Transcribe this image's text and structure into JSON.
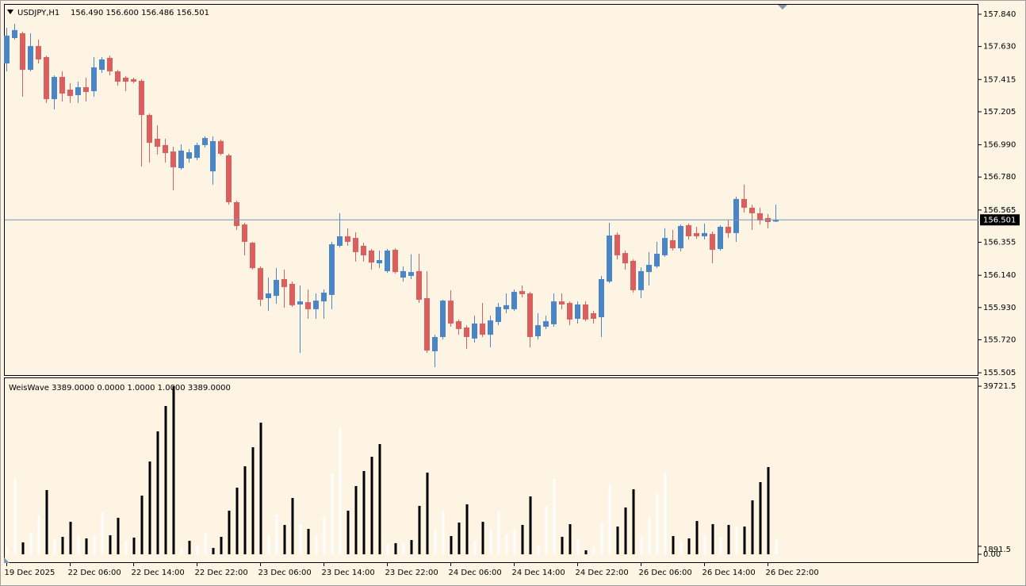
{
  "chart_data": [
    {
      "type": "candlestick",
      "title": "USDJPY,H1",
      "subtitle": "156.490 156.600 156.486 156.501",
      "categories": [
        "19 Dec 2025",
        null,
        null,
        null,
        null,
        null,
        null,
        null,
        "22 Dec 06:00",
        null,
        null,
        null,
        null,
        null,
        null,
        null,
        "22 Dec 14:00",
        null,
        null,
        null,
        null,
        null,
        null,
        null,
        "22 Dec 22:00",
        null,
        null,
        null,
        null,
        null,
        null,
        null,
        "23 Dec 06:00",
        null,
        null,
        null,
        null,
        null,
        null,
        null,
        "23 Dec 14:00",
        null,
        null,
        null,
        null,
        null,
        null,
        null,
        "23 Dec 22:00",
        null,
        null,
        null,
        null,
        null,
        null,
        null,
        "24 Dec 06:00",
        null,
        null,
        null,
        null,
        null,
        null,
        null,
        "24 Dec 14:00",
        null,
        null,
        null,
        null,
        null,
        null,
        null,
        "24 Dec 22:00",
        null,
        null,
        null,
        null,
        null,
        null,
        null,
        "26 Dec 06:00",
        null,
        null,
        null,
        null,
        null,
        null,
        null,
        "26 Dec 14:00",
        null,
        null,
        null,
        null,
        null,
        null,
        null,
        "26 Dec 22:00",
        null
      ],
      "open": [
        157.52,
        157.685,
        157.716,
        157.478,
        157.633,
        157.561,
        157.287,
        157.432,
        157.349,
        157.313,
        157.365,
        157.339,
        157.478,
        157.556,
        157.468,
        157.427,
        157.417,
        157.406,
        157.184,
        157.029,
        156.988,
        156.946,
        156.838,
        156.9,
        156.905,
        156.988,
        156.817,
        157.014,
        156.921,
        156.616,
        156.471,
        156.352,
        156.187,
        155.991,
        156.006,
        156.115,
        156.084,
        155.95,
        155.965,
        155.919,
        155.97,
        156.012,
        156.332,
        156.394,
        156.383,
        156.332,
        156.301,
        156.218,
        156.167,
        156.306,
        156.125,
        156.136,
        156.167,
        155.991,
        155.645,
        155.738,
        155.975,
        155.841,
        155.8,
        155.728,
        155.826,
        155.753,
        155.836,
        155.919,
        155.919,
        156.037,
        156.022,
        155.743,
        155.805,
        155.821,
        155.97,
        155.96,
        155.857,
        155.95,
        155.893,
        155.867,
        156.099,
        156.404,
        156.285,
        156.234,
        156.043,
        156.161,
        156.198,
        156.27,
        156.368,
        156.316,
        156.466,
        156.415,
        156.394,
        156.409,
        156.311,
        156.456,
        156.415,
        156.637,
        156.58,
        156.544,
        156.513,
        156.49
      ],
      "high": [
        157.752,
        157.778,
        157.726,
        157.716,
        157.675,
        157.571,
        157.442,
        157.468,
        157.391,
        157.401,
        157.427,
        157.561,
        157.561,
        157.571,
        157.478,
        157.437,
        157.427,
        157.417,
        157.194,
        157.117,
        157.029,
        156.977,
        156.993,
        156.962,
        157.003,
        157.045,
        157.045,
        157.024,
        156.931,
        156.626,
        156.482,
        156.358,
        156.198,
        156.125,
        156.187,
        156.177,
        156.099,
        156.074,
        156.048,
        156.022,
        156.048,
        156.358,
        156.544,
        156.446,
        156.42,
        156.352,
        156.311,
        156.301,
        156.311,
        156.316,
        156.198,
        156.275,
        156.28,
        156.167,
        155.753,
        155.981,
        156.043,
        155.852,
        155.815,
        155.877,
        155.96,
        155.877,
        155.96,
        156.022,
        156.048,
        156.074,
        156.032,
        155.893,
        155.877,
        156.022,
        156.022,
        155.97,
        155.97,
        155.97,
        155.908,
        156.136,
        156.482,
        156.42,
        156.301,
        156.244,
        156.192,
        156.291,
        156.358,
        156.446,
        156.435,
        156.471,
        156.477,
        156.456,
        156.477,
        156.425,
        156.466,
        156.502,
        156.652,
        156.73,
        156.6,
        156.58,
        156.539,
        156.6
      ],
      "low": [
        157.468,
        157.675,
        157.303,
        157.468,
        157.52,
        157.262,
        157.22,
        157.272,
        157.262,
        157.262,
        157.272,
        157.303,
        157.458,
        157.442,
        157.375,
        157.339,
        157.391,
        156.848,
        156.874,
        156.926,
        156.874,
        156.693,
        156.828,
        156.874,
        156.89,
        156.972,
        156.73,
        156.921,
        156.6,
        156.435,
        156.27,
        156.177,
        155.939,
        155.908,
        155.955,
        155.929,
        155.934,
        155.635,
        155.857,
        155.857,
        155.857,
        155.919,
        156.321,
        156.332,
        156.229,
        156.229,
        156.177,
        156.187,
        156.156,
        156.151,
        156.099,
        156.115,
        155.96,
        155.635,
        155.542,
        155.722,
        155.805,
        155.753,
        155.66,
        155.702,
        155.738,
        155.671,
        155.815,
        155.893,
        155.908,
        155.996,
        155.671,
        155.722,
        155.79,
        155.805,
        155.919,
        155.815,
        155.826,
        155.841,
        155.826,
        155.738,
        156.089,
        156.244,
        156.177,
        156.027,
        155.991,
        156.074,
        156.187,
        156.26,
        156.301,
        156.296,
        156.373,
        156.378,
        156.373,
        156.218,
        156.301,
        156.383,
        156.358,
        156.549,
        156.435,
        156.471,
        156.446,
        156.486
      ],
      "close": [
        157.701,
        157.737,
        157.478,
        157.633,
        157.546,
        157.287,
        157.432,
        157.324,
        157.308,
        157.365,
        157.334,
        157.494,
        157.546,
        157.468,
        157.401,
        157.401,
        157.401,
        157.184,
        157.003,
        156.977,
        156.936,
        156.843,
        156.952,
        156.941,
        156.988,
        157.034,
        157.014,
        156.931,
        156.616,
        156.461,
        156.358,
        156.187,
        155.981,
        156.022,
        156.11,
        156.063,
        155.945,
        155.97,
        155.919,
        155.975,
        156.027,
        156.342,
        156.394,
        156.358,
        156.291,
        156.27,
        156.223,
        156.239,
        156.301,
        156.161,
        156.167,
        156.161,
        155.981,
        155.65,
        155.738,
        155.975,
        155.826,
        155.79,
        155.738,
        155.826,
        155.753,
        155.846,
        155.934,
        155.945,
        156.032,
        156.017,
        155.738,
        155.815,
        155.841,
        155.97,
        155.95,
        155.852,
        155.95,
        155.852,
        155.857,
        156.115,
        156.399,
        156.27,
        156.218,
        156.043,
        156.167,
        156.208,
        156.28,
        156.383,
        156.316,
        156.461,
        156.394,
        156.394,
        156.415,
        156.306,
        156.456,
        156.415,
        156.637,
        156.58,
        156.544,
        156.497,
        156.487,
        156.501
      ],
      "up_color": "#4a86c5",
      "down_color": "#d9605f",
      "last_price": 156.501,
      "last_price_color": "#7594b8",
      "ylim": [
        155.485,
        157.907
      ],
      "yticks": [
        {
          "value": 157.84,
          "label": "157.840"
        },
        {
          "value": 157.63,
          "label": "157.630"
        },
        157.415,
        157.205,
        {
          "value": 156.99,
          "label": "156.990"
        },
        {
          "value": 156.78,
          "label": "156.780"
        },
        156.565,
        156.355,
        {
          "value": 156.14,
          "label": "156.140"
        },
        {
          "value": 155.93,
          "label": "155.930"
        },
        {
          "value": 155.72,
          "label": "155.720"
        },
        155.505
      ]
    },
    {
      "type": "bar",
      "title": "WeisWave 3389.0000 0.0000 1.0000 1.0000 3389.0000",
      "values": [
        1690,
        17990,
        2810,
        5250,
        9180,
        15180,
        3560,
        4120,
        7680,
        4310,
        3750,
        4310,
        9930,
        4500,
        8620,
        3190,
        3940,
        13870,
        21930,
        29050,
        35040,
        39721.5,
        1310,
        3190,
        2060,
        4870,
        1500,
        4120,
        10310,
        15740,
        20800,
        25300,
        31110,
        4310,
        9370,
        6930,
        13310,
        7120,
        6000,
        4310,
        9000,
        19110,
        29800,
        10310,
        16120,
        19680,
        23050,
        26050,
        2440,
        2620,
        2620,
        3370,
        11430,
        19300,
        6000,
        10120,
        4310,
        7500,
        11810,
        3190,
        7680,
        5810,
        10120,
        4690,
        5810,
        6930,
        13680,
        2060,
        11430,
        17800,
        4120,
        7120,
        3560,
        940,
        1690,
        7310,
        16490,
        6560,
        11060,
        15370,
        4120,
        8810,
        14430,
        19110,
        4310,
        3190,
        3750,
        7870,
        4500,
        7120,
        4120,
        6930,
        6560,
        6560,
        12740,
        17050,
        20610,
        3389
      ],
      "colors": [
        "#fff",
        "#fff",
        "#000",
        "#fff",
        "#fff",
        "#000",
        "#fff",
        "#000",
        "#000",
        "#fff",
        "#000",
        "#fff",
        "#fff",
        "#000",
        "#000",
        "#fff",
        "#000",
        "#000",
        "#000",
        "#000",
        "#000",
        "#000",
        "#fff",
        "#000",
        "#fff",
        "#fff",
        "#000",
        "#000",
        "#000",
        "#000",
        "#000",
        "#000",
        "#000",
        "#fff",
        "#fff",
        "#000",
        "#000",
        "#fff",
        "#000",
        "#fff",
        "#fff",
        "#fff",
        "#fff",
        "#000",
        "#000",
        "#000",
        "#000",
        "#000",
        "#fff",
        "#000",
        "#fff",
        "#000",
        "#000",
        "#000",
        "#fff",
        "#fff",
        "#000",
        "#000",
        "#000",
        "#fff",
        "#000",
        "#fff",
        "#fff",
        "#fff",
        "#fff",
        "#000",
        "#000",
        "#fff",
        "#fff",
        "#fff",
        "#000",
        "#000",
        "#fff",
        "#000",
        "#fff",
        "#fff",
        "#fff",
        "#000",
        "#000",
        "#000",
        "#fff",
        "#fff",
        "#fff",
        "#fff",
        "#000",
        "#fff",
        "#000",
        "#000",
        "#fff",
        "#000",
        "#fff",
        "#000",
        "#fff",
        "#000",
        "#000",
        "#000",
        "#000",
        "#fff"
      ],
      "ylim": [
        -2061,
        41603
      ],
      "yticks": [
        39721.5,
        1891.5,
        {
          "value": 0,
          "label": "0.00"
        }
      ]
    }
  ]
}
